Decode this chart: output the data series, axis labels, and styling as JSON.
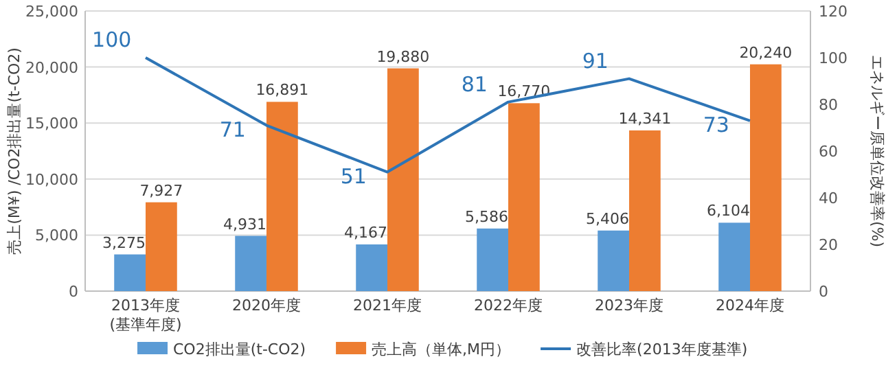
{
  "chart_data": {
    "type": "bar",
    "categories": [
      "2013年度\n(基準年度)",
      "2020年度",
      "2021年度",
      "2022年度",
      "2023年度",
      "2024年度"
    ],
    "series": [
      {
        "name": "CO2排出量(t-CO2)",
        "color": "#5b9bd5",
        "values": [
          3275,
          4931,
          4167,
          5586,
          5406,
          6104
        ],
        "value_labels": [
          "3,275",
          "4,931",
          "4,167",
          "5,586",
          "5,406",
          "6,104"
        ]
      },
      {
        "name": "売上高（単体,M円）",
        "color": "#ed7d31",
        "values": [
          7927,
          16891,
          19880,
          16770,
          14341,
          20240
        ],
        "value_labels": [
          "7,927",
          "16,891",
          "19,880",
          "16,770",
          "14,341",
          "20,240"
        ]
      },
      {
        "name": "改善比率(2013年度基準)",
        "type": "line",
        "axis": "y2",
        "color": "#2e75b6",
        "values": [
          100,
          71,
          51,
          81,
          91,
          73
        ],
        "value_labels": [
          "100",
          "71",
          "51",
          "81",
          "91",
          "73"
        ]
      }
    ],
    "ylabel": "売上(M¥) /CO2排出量(t-CO2)",
    "y2label": "エネルギー原単位改善率(%)",
    "ylim": [
      0,
      25000
    ],
    "yticks": [
      0,
      {
        "value": 5000,
        "label": "5,000"
      },
      {
        "value": 10000,
        "label": "10,000"
      },
      {
        "value": 15000,
        "label": "15,000"
      },
      {
        "value": 20000,
        "label": "20,000"
      },
      {
        "value": 25000,
        "label": "25,000"
      }
    ],
    "y2lim": [
      0,
      120
    ],
    "y2ticks": [
      0,
      20,
      40,
      60,
      80,
      100,
      120
    ],
    "grid": "y",
    "legend": "bottom"
  }
}
